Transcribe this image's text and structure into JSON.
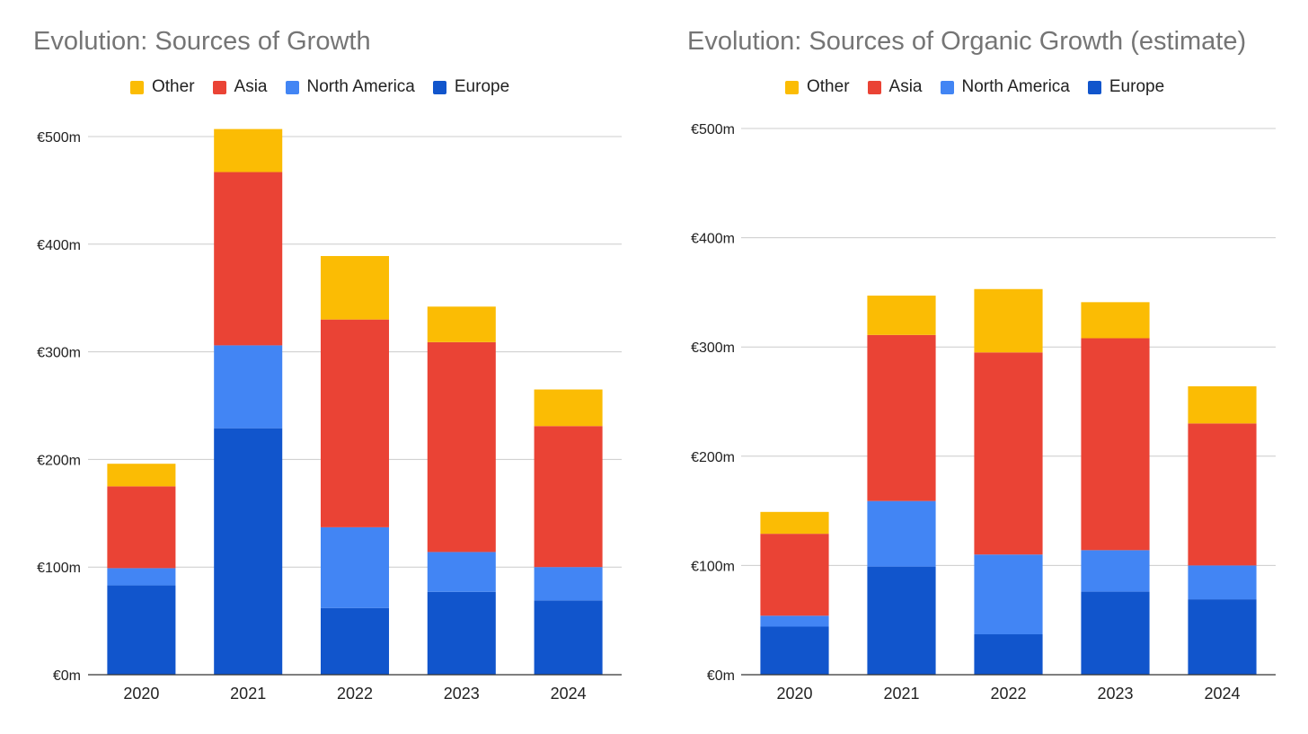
{
  "chart_data": [
    {
      "type": "bar",
      "stacked": true,
      "title": "Evolution: Sources of Growth",
      "categories": [
        "2020",
        "2021",
        "2022",
        "2023",
        "2024"
      ],
      "series": [
        {
          "name": "Europe",
          "color": "#1155CC",
          "values": [
            83,
            229,
            62,
            77,
            69
          ]
        },
        {
          "name": "North America",
          "color": "#4285F4",
          "values": [
            16,
            77,
            75,
            37,
            31
          ]
        },
        {
          "name": "Asia",
          "color": "#EA4335",
          "values": [
            76,
            161,
            193,
            195,
            131
          ]
        },
        {
          "name": "Other",
          "color": "#FBBC04",
          "values": [
            21,
            40,
            59,
            33,
            34
          ]
        }
      ],
      "legend_order": [
        "Other",
        "Asia",
        "North America",
        "Europe"
      ],
      "yticks": [
        0,
        100,
        200,
        300,
        400,
        500
      ],
      "ytick_labels": [
        "€0m",
        "€100m",
        "€200m",
        "€300m",
        "€400m",
        "€500m"
      ],
      "ylim": [
        0,
        500
      ],
      "legend": "top",
      "grid": true
    },
    {
      "type": "bar",
      "stacked": true,
      "title": "Evolution: Sources of Organic Growth (estimate)",
      "categories": [
        "2020",
        "2021",
        "2022",
        "2023",
        "2024"
      ],
      "series": [
        {
          "name": "Europe",
          "color": "#1155CC",
          "values": [
            44,
            99,
            37,
            76,
            69
          ]
        },
        {
          "name": "North America",
          "color": "#4285F4",
          "values": [
            10,
            60,
            73,
            38,
            31
          ]
        },
        {
          "name": "Asia",
          "color": "#EA4335",
          "values": [
            75,
            152,
            185,
            194,
            130
          ]
        },
        {
          "name": "Other",
          "color": "#FBBC04",
          "values": [
            20,
            36,
            58,
            33,
            34
          ]
        }
      ],
      "legend_order": [
        "Other",
        "Asia",
        "North America",
        "Europe"
      ],
      "yticks": [
        0,
        100,
        200,
        300,
        400,
        500
      ],
      "ytick_labels": [
        "€0m",
        "€100m",
        "€200m",
        "€300m",
        "€400m",
        "€500m"
      ],
      "ylim": [
        0,
        500
      ],
      "legend": "top",
      "grid": true
    }
  ]
}
